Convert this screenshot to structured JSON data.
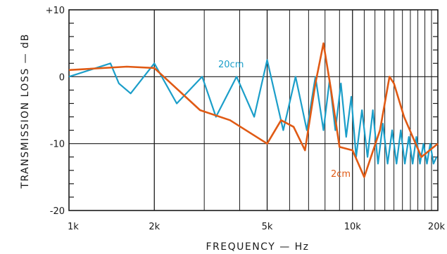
{
  "chart_data": {
    "type": "line",
    "ylabel": "TRANSMISSION LOSS — dB",
    "xlabel": "FREQUENCY — Hz",
    "x_scale": "log",
    "xlim": [
      1000,
      20000
    ],
    "ylim": [
      -20,
      10
    ],
    "x_ticks": [
      {
        "value": 1000,
        "label": "1k"
      },
      {
        "value": 2000,
        "label": "2k"
      },
      {
        "value": 5000,
        "label": "5k"
      },
      {
        "value": 10000,
        "label": "10k"
      },
      {
        "value": 20000,
        "label": "20k"
      }
    ],
    "y_ticks": [
      {
        "value": 10,
        "label": "+10"
      },
      {
        "value": 0,
        "label": "0"
      },
      {
        "value": -10,
        "label": "-10"
      },
      {
        "value": -20,
        "label": "-20"
      }
    ],
    "grid": true,
    "series": [
      {
        "name": "20cm",
        "color": "#1b9ec9",
        "x": [
          1000,
          1400,
          1500,
          1650,
          2000,
          2400,
          2950,
          3300,
          3900,
          4500,
          5000,
          5700,
          6300,
          6900,
          7400,
          7900,
          8300,
          8700,
          9100,
          9500,
          9900,
          10300,
          10800,
          11300,
          11800,
          12300,
          12800,
          13300,
          13800,
          14300,
          14800,
          15300,
          15800,
          16300,
          16800,
          17300,
          17800,
          18300,
          18800,
          19300,
          19800
        ],
        "y": [
          0,
          2,
          -1,
          -2.5,
          2,
          -4,
          0,
          -6,
          0,
          -6,
          2.5,
          -8,
          0,
          -8,
          0,
          -8,
          -0.5,
          -8,
          -1,
          -9,
          -3,
          -12,
          -5,
          -12,
          -5,
          -13,
          -7,
          -13,
          -8,
          -13,
          -8,
          -13,
          -9,
          -13,
          -9,
          -13,
          -10,
          -13,
          -10,
          -13,
          -12
        ]
      },
      {
        "name": "2cm",
        "color": "#e05a14",
        "x": [
          1000,
          1600,
          2000,
          2900,
          3700,
          5000,
          5600,
          6200,
          6800,
          7400,
          7900,
          8400,
          9000,
          10000,
          11000,
          12500,
          13500,
          14000,
          15200,
          17500,
          20000
        ],
        "y": [
          1,
          1.5,
          1.3,
          -5,
          -6.5,
          -10,
          -6.5,
          -7.5,
          -11,
          -1,
          5,
          -2,
          -10.5,
          -11,
          -15,
          -8,
          0,
          -1,
          -6,
          -12,
          -10
        ]
      }
    ],
    "annotations": [
      {
        "text": "20cm",
        "series": "20cm"
      },
      {
        "text": "2cm",
        "series": "2cm"
      }
    ]
  }
}
